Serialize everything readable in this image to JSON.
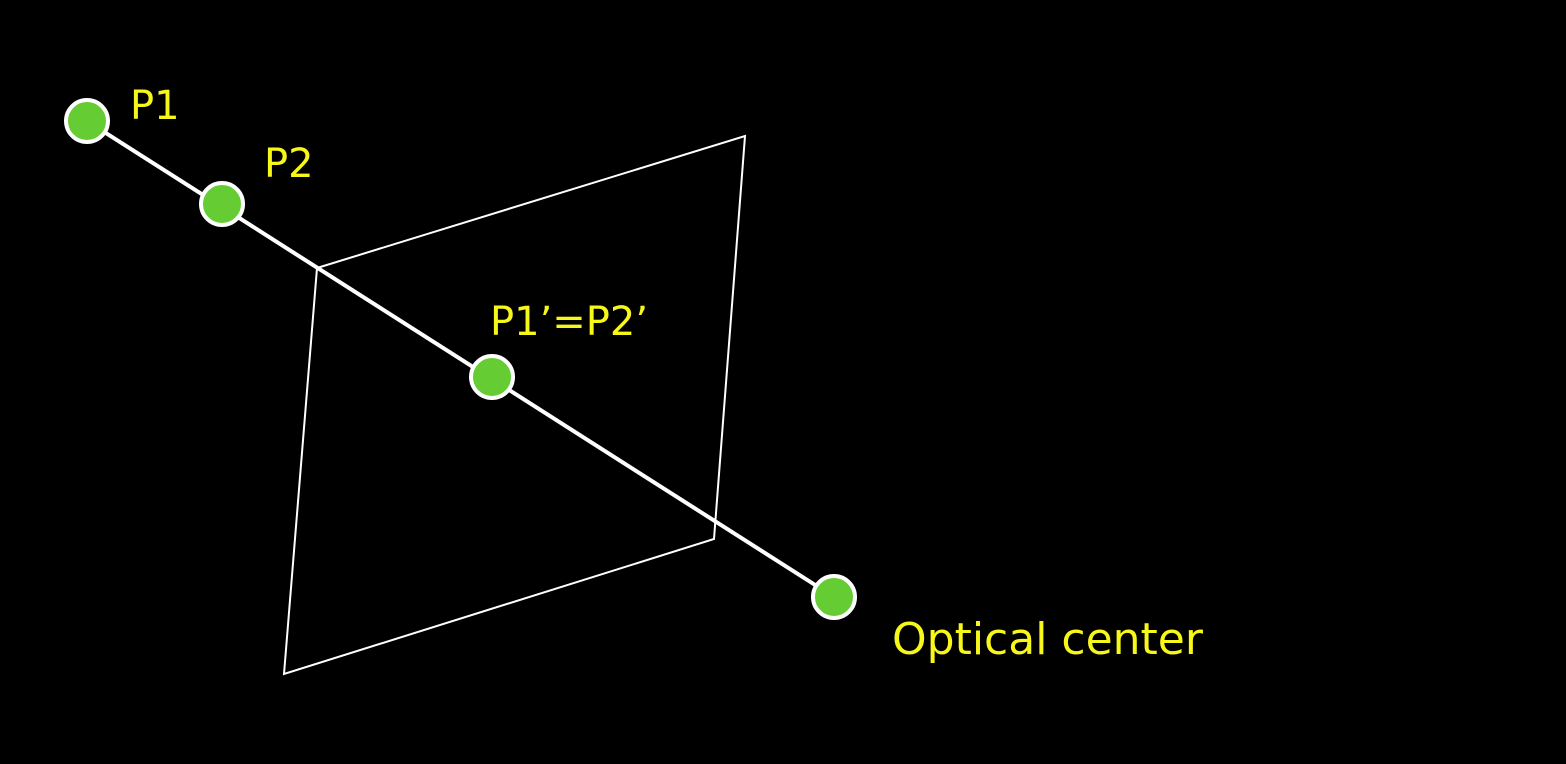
{
  "diagram": {
    "background_color": "#000000",
    "label_color": "#f7f71a",
    "point_fill_color": "#66cc33",
    "line_color": "#ffffff",
    "labels": {
      "p1": "P1",
      "p2": "P2",
      "projection": "P1’=P2’",
      "optical_center": "Optical center"
    }
  }
}
